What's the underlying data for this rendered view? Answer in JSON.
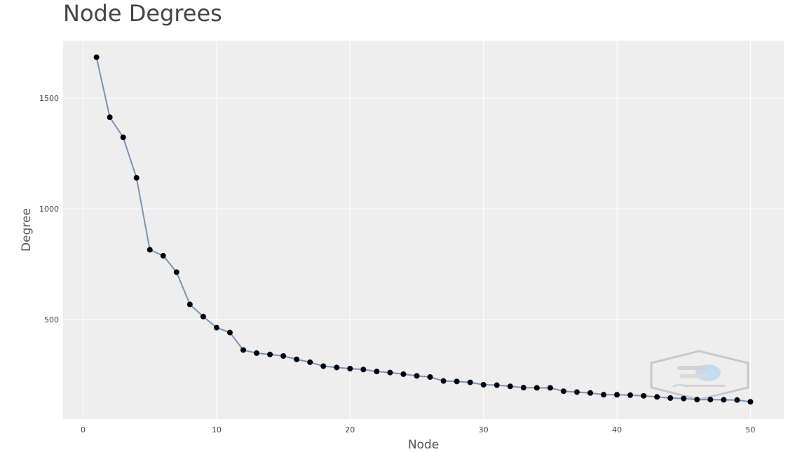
{
  "chart_data": {
    "type": "line",
    "title": "Node Degrees",
    "xlabel": "Node",
    "ylabel": "Degree",
    "xlim": [
      -1.5,
      52.5
    ],
    "ylim": [
      50,
      1760
    ],
    "x_ticks": [
      0,
      10,
      20,
      30,
      40,
      50
    ],
    "y_ticks": [
      500,
      1000,
      1500
    ],
    "grid": true,
    "legend": "none",
    "colors": {
      "line": "#7792bf",
      "marker": "#000000",
      "plot_bg": "#eeeeee",
      "grid": "#ffffff"
    },
    "series": [
      {
        "x": [
          1,
          2,
          3,
          4,
          5,
          6,
          7,
          8,
          9,
          10,
          11,
          12,
          13,
          14,
          15,
          16,
          17,
          18,
          19,
          20,
          21,
          22,
          23,
          24,
          25,
          26,
          27,
          28,
          29,
          30,
          31,
          32,
          33,
          34,
          35,
          36,
          37,
          38,
          39,
          40,
          41,
          42,
          43,
          44,
          45,
          46,
          47,
          48,
          49,
          50
        ],
        "values": [
          1685,
          1414,
          1323,
          1140,
          815,
          788,
          714,
          568,
          513,
          463,
          441,
          362,
          348,
          342,
          335,
          320,
          307,
          289,
          283,
          278,
          274,
          265,
          260,
          253,
          245,
          240,
          222,
          220,
          216,
          205,
          203,
          198,
          192,
          191,
          191,
          176,
          172,
          168,
          160,
          160,
          158,
          155,
          150,
          145,
          143,
          138,
          138,
          137,
          136,
          128
        ]
      }
    ],
    "watermark_icon": "hexagon-logo-icon"
  }
}
